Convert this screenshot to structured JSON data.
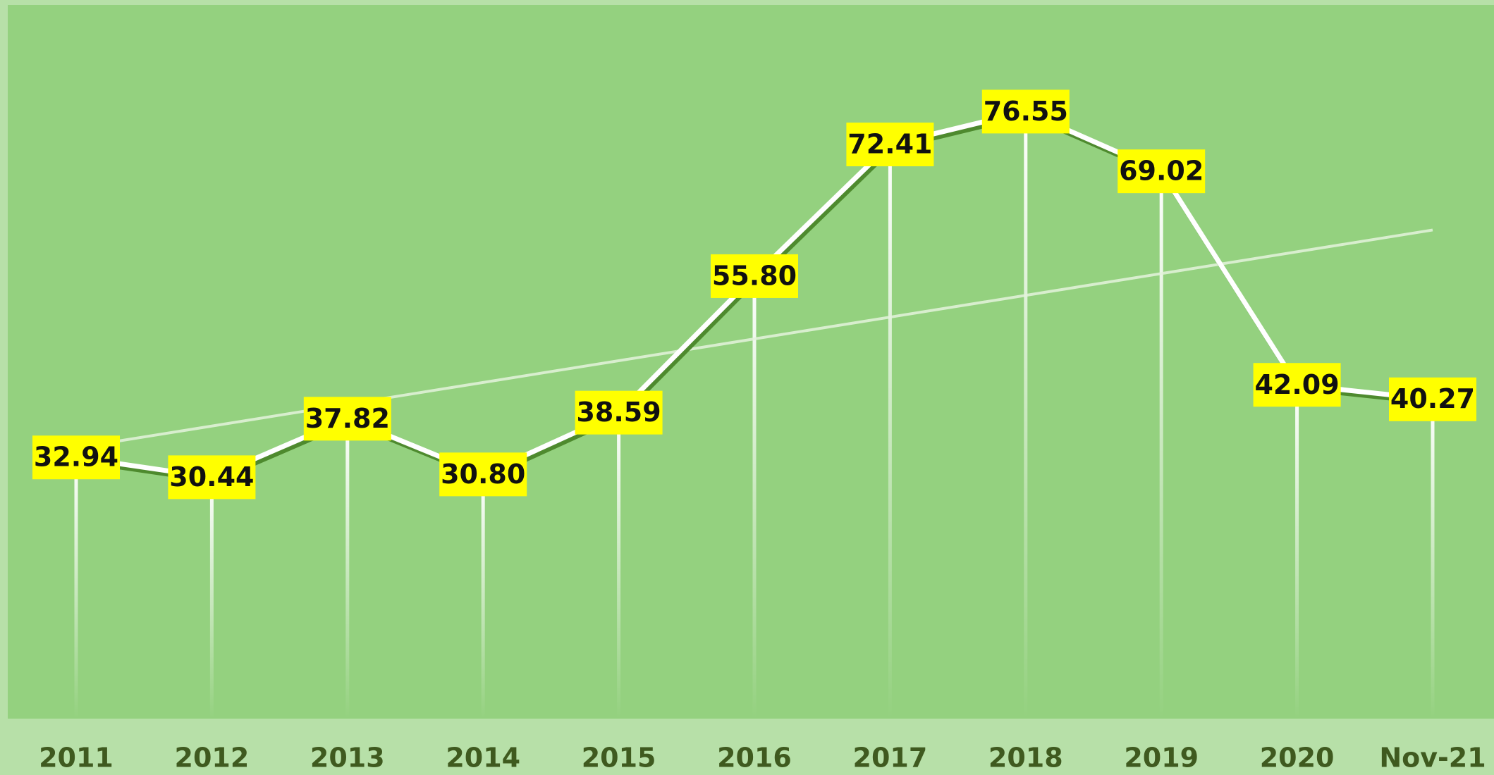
{
  "chart_data": {
    "type": "line",
    "categories": [
      "2011",
      "2012",
      "2013",
      "2014",
      "2015",
      "2016",
      "2017",
      "2018",
      "2019",
      "2020",
      "Nov-21"
    ],
    "series": [
      {
        "color": "#ffffff",
        "values": [
          32.94,
          30.44,
          37.82,
          30.8,
          38.59,
          55.8,
          72.41,
          76.55,
          69.02,
          42.09,
          40.27
        ],
        "value_labels": [
          "32.94",
          "30.44",
          "37.82",
          "30.80",
          "38.59",
          "55.80",
          "72.41",
          "76.55",
          "69.02",
          "42.09",
          "40.27"
        ]
      }
    ],
    "ylim": [
      0,
      90
    ],
    "trendline": "linear",
    "drop_lines": true,
    "label_color": "#ffff00"
  }
}
